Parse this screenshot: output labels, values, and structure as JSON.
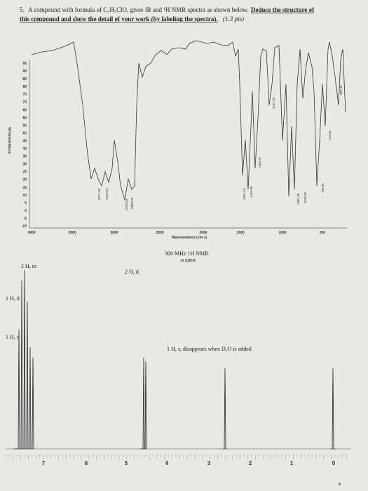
{
  "question": {
    "number": "5.",
    "line1": "A compound with formula of C₇H₇ClO, gives IR and ¹H NMR spectra as shown below.",
    "line1_underlined": "Deduce the structure of",
    "line2_underlined": "this compound and show the detail of your work (by labeling the spectra).",
    "points": "(1.3 pts)"
  },
  "ir": {
    "y_label": "%Transmittance",
    "y_ticks": [
      "95",
      "90",
      "85",
      "80",
      "75",
      "70",
      "65",
      "60",
      "55",
      "50",
      "45",
      "40",
      "35",
      "30",
      "25",
      "20",
      "15",
      "10",
      "5",
      "0",
      "-5",
      "-10"
    ],
    "x_label": "Wavenumbers (cm-1)",
    "x_ticks": [
      "4000",
      "3500",
      "3000",
      "2500",
      "2000",
      "1500",
      "1000",
      "500"
    ],
    "peaks": [
      "3271.55",
      "3219.65",
      "2916.04",
      "2856.06",
      "1487.29",
      "1449.96",
      "1369.31",
      "1197.70",
      "1082.30",
      "1038.99",
      "756.95",
      "734.52",
      "669.85"
    ]
  },
  "nmr": {
    "title": "300 MHz 1H NMR",
    "solvent": "in CDCl3",
    "labels": [
      "2 H, m",
      "2 H, d",
      "1 H, d",
      "1 H, d",
      "1 H, s, disappears when D₂O is added"
    ],
    "x_ticks": [
      "7",
      "6",
      "5",
      "4",
      "3",
      "2",
      "1",
      "0"
    ]
  },
  "page_number": "8"
}
